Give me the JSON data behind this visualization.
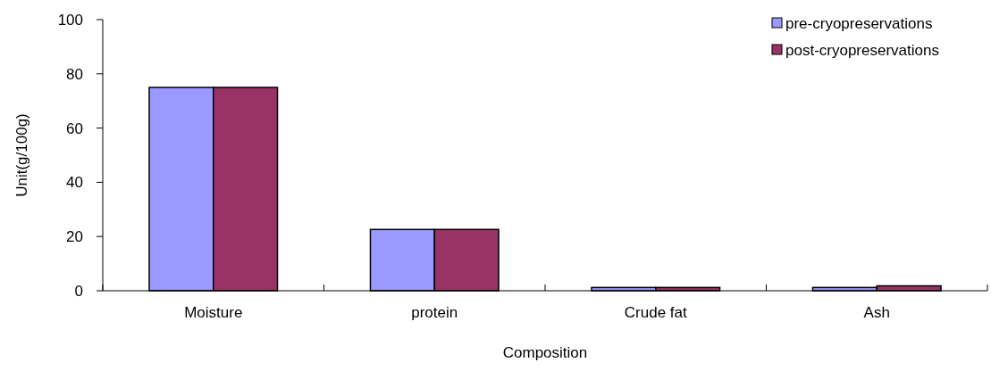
{
  "chart_data": {
    "type": "bar",
    "xlabel": "Composition",
    "ylabel": "Unit(g/100g)",
    "categories": [
      "Moisture",
      "protein",
      "Crude fat",
      "Ash"
    ],
    "series": [
      {
        "name": "pre-cryopreservations",
        "color": "#9999ff",
        "values": [
          75,
          22.6,
          1.2,
          1.2
        ]
      },
      {
        "name": "post-cryopreservations",
        "color": "#993366",
        "values": [
          75,
          22.6,
          1.2,
          1.8
        ]
      }
    ],
    "ylim": [
      0,
      100
    ],
    "yticks": [
      0,
      20,
      40,
      60,
      80,
      100
    ],
    "grid": false,
    "legend": "top right"
  }
}
